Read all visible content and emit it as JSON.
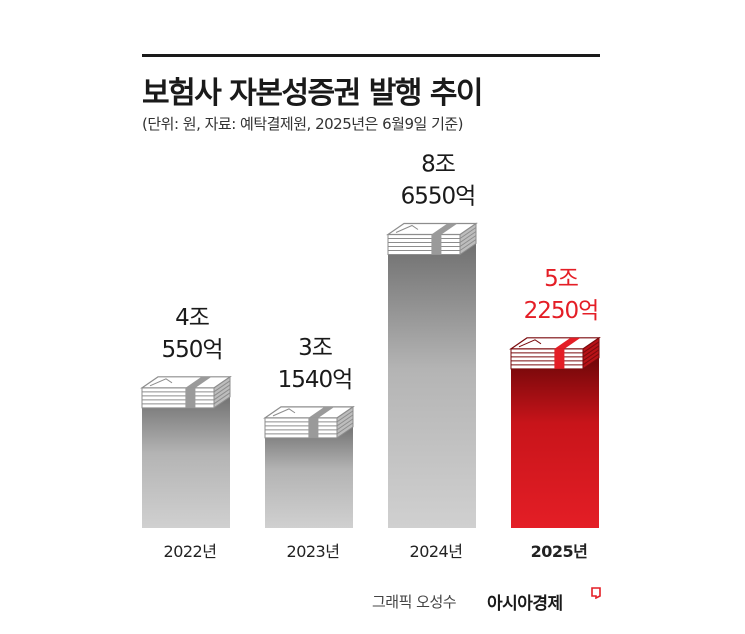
{
  "title": "보험사 자본성증권 발행 추이",
  "subtitle": "(단위: 원, 자료: 예탁결제원, 2025년은 6월9일 기준)",
  "credit": "그래픽 오성수",
  "brand": "아시아경제",
  "colors": {
    "gray": "#a8a8a8",
    "highlight": "#e41e26",
    "text": "#1a1a1a"
  },
  "chart_data": {
    "type": "bar",
    "categories": [
      "2022년",
      "2023년",
      "2024년",
      "2025년"
    ],
    "values": [
      40550,
      31540,
      86550,
      52250
    ],
    "value_unit": "억원",
    "labels": [
      [
        "4조",
        "550억"
      ],
      [
        "3조",
        "1540억"
      ],
      [
        "8조",
        "6550억"
      ],
      [
        "5조",
        "2250억"
      ]
    ],
    "highlight_index": 3,
    "ylim": [
      0,
      90000
    ],
    "grid": false
  }
}
